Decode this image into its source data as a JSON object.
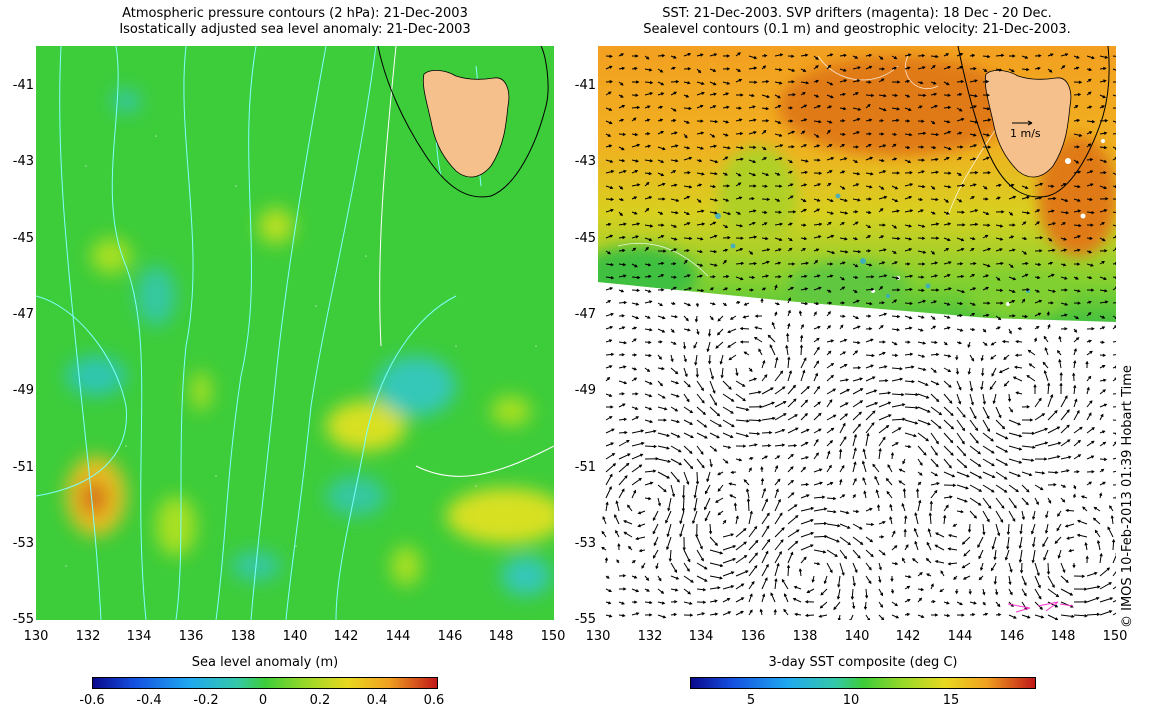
{
  "left_panel": {
    "title_line1": "Atmospheric pressure contours (2 hPa): 21-Dec-2003",
    "title_line2": "Isostatically adjusted sea level anomaly: 21-Dec-2003",
    "colorbar": {
      "label": "Sea level anomaly (m)",
      "ticks": [
        "-0.6",
        "-0.4",
        "-0.2",
        "0",
        "0.2",
        "0.4",
        "0.6"
      ],
      "range": [
        -0.6,
        0.6
      ]
    }
  },
  "right_panel": {
    "title_line1": "SST: 21-Dec-2003. SVP drifters (magenta): 18 Dec - 20 Dec.",
    "title_line2": "Sealevel contours (0.1 m) and geostrophic velocity: 21-Dec-2003.",
    "scale_label": "1 m/s",
    "colorbar": {
      "label": "3-day SST composite (deg C)",
      "ticks": [
        "5",
        "10",
        "15"
      ],
      "range": [
        1.5,
        19.5
      ]
    }
  },
  "axes": {
    "lat_ticks": [
      "-41",
      "-43",
      "-45",
      "-47",
      "-49",
      "-51",
      "-53",
      "-55"
    ],
    "lon_ticks": [
      "130",
      "132",
      "134",
      "136",
      "138",
      "140",
      "142",
      "144",
      "146",
      "148",
      "150"
    ]
  },
  "copyright": "© IMOS 10-Feb-2013 01:39 Hobart Time",
  "colors": {
    "land": "#f5c08c",
    "ocean_base": "#3dcc3a",
    "contour_cyan": "#7fffff",
    "sst_warm": "#f09a1a",
    "drifter": "#ff33cc"
  }
}
